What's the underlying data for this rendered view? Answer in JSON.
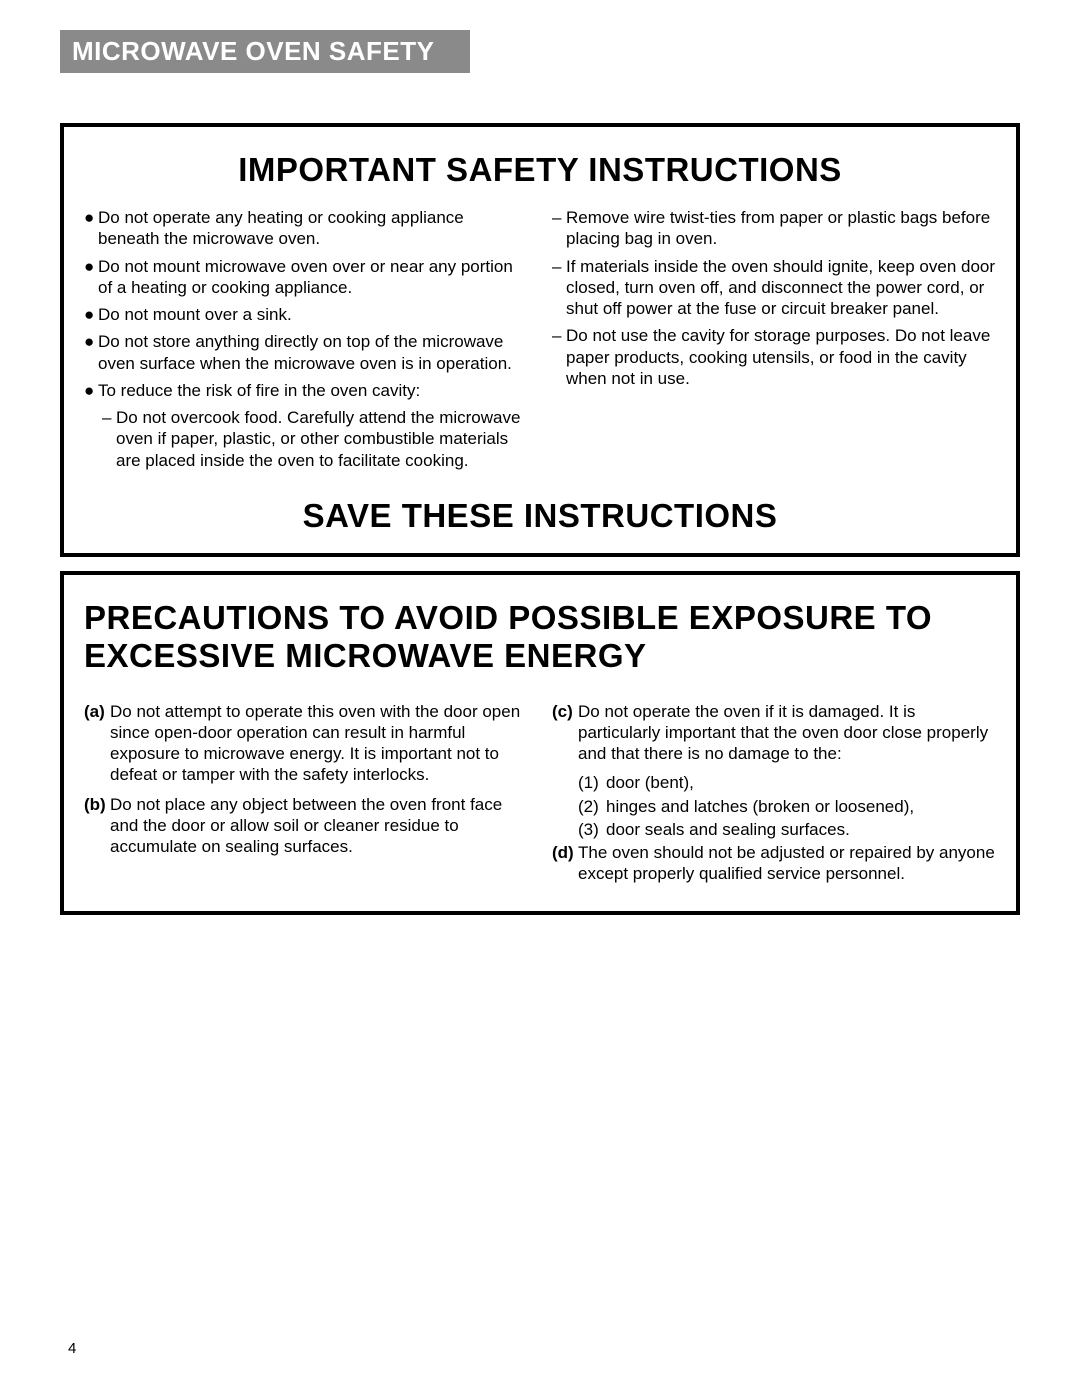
{
  "header": {
    "section_title": "MICROWAVE OVEN SAFETY"
  },
  "box1": {
    "title": "IMPORTANT SAFETY INSTRUCTIONS",
    "save": "SAVE THESE INSTRUCTIONS",
    "left": {
      "b1": "Do not operate any heating or cooking appliance beneath the microwave oven.",
      "b2": "Do not mount microwave oven over or near any portion of a heating or cooking appliance.",
      "b3": "Do not mount over a sink.",
      "b4": "Do not store anything directly on top of the microwave oven surface when the microwave oven is in operation.",
      "b5": "To reduce the risk of fire in the oven cavity:",
      "d1": "Do not overcook food. Carefully attend the microwave oven if paper, plastic, or other combustible materials are placed inside the oven to facilitate cooking."
    },
    "right": {
      "d1": "Remove wire twist-ties from paper or plastic bags before placing bag in oven.",
      "d2": "If materials inside the oven should ignite, keep oven door closed, turn oven off, and disconnect the power cord, or shut off power at the fuse or circuit breaker panel.",
      "d3": "Do not use the cavity for storage purposes. Do not leave paper products, cooking utensils, or food in the cavity when not in use."
    }
  },
  "box2": {
    "title": "PRECAUTIONS TO AVOID POSSIBLE EXPOSURE TO EXCESSIVE MICROWAVE ENERGY",
    "left": {
      "a_lbl": "(a)",
      "a": "Do not attempt to operate this oven with the door open since open-door operation can result in harmful exposure to microwave energy. It is important not to defeat or tamper with the safety interlocks.",
      "b_lbl": "(b)",
      "b": "Do not place any object between the oven front face and the door or allow soil or cleaner residue to accumulate on sealing surfaces."
    },
    "right": {
      "c_lbl": "(c)",
      "c": "Do not operate the oven if it is damaged. It is particularly important that the oven door close properly and that there is no damage to the:",
      "n1_lbl": "(1)",
      "n1": "door (bent),",
      "n2_lbl": "(2)",
      "n2": "hinges and latches (broken or loosened),",
      "n3_lbl": "(3)",
      "n3": "door seals and sealing surfaces.",
      "d_lbl": "(d)",
      "d": "The oven should not be adjusted or repaired by anyone except properly qualified service personnel."
    }
  },
  "page_number": "4"
}
